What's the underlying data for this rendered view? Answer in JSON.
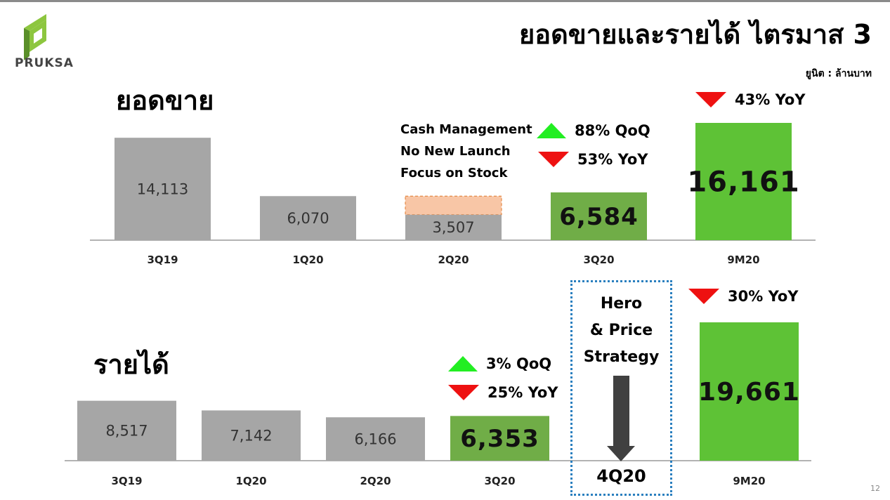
{
  "header": {
    "title": "ยอดขายและรายได้ ไตรมาส 3",
    "unit": "ยูนิต : ล้านบาท",
    "logo_text": "PRUKSA",
    "page_number": "12"
  },
  "colors": {
    "gray": "#a6a6a6",
    "green_dark": "#70ad47",
    "green_bright": "#5ec236",
    "peach": "#f8c6a6",
    "up": "#22ee22",
    "down": "#ee1111"
  },
  "sales": {
    "section_title": "ยอดขาย",
    "notes": [
      "Cash Management",
      "No New Launch",
      "Focus on Stock"
    ],
    "qoq_up": "88% QoQ",
    "yoy_down": "53% YoY",
    "ytd_yoy_down": "43% YoY"
  },
  "revenue": {
    "section_title": "รายได้",
    "qoq_up": "3% QoQ",
    "yoy_down": "25% YoY",
    "ytd_yoy_down": "30% YoY",
    "strategy_lines": [
      "Hero",
      "& Price",
      "Strategy"
    ],
    "next_quarter": "4Q20"
  },
  "chart_data": [
    {
      "type": "bar",
      "categories": [
        "3Q19",
        "1Q20",
        "2Q20",
        "3Q20",
        "9M20"
      ],
      "values": [
        14113,
        6070,
        3507,
        6584,
        16161
      ],
      "data_labels": [
        "14,113",
        "6,070",
        "3,507",
        "6,584",
        "16,161"
      ],
      "highlight_colors": [
        "gray",
        "gray",
        "gray",
        "green_dark",
        "green_bright"
      ],
      "annotations": [
        {
          "category": "2Q20",
          "shaded_target_value": 6070
        }
      ],
      "title": "ยอดขาย"
    },
    {
      "type": "bar",
      "categories": [
        "3Q19",
        "1Q20",
        "2Q20",
        "3Q20",
        "9M20"
      ],
      "values": [
        8517,
        7142,
        6166,
        6353,
        19661
      ],
      "data_labels": [
        "8,517",
        "7,142",
        "6,166",
        "6,353",
        "19,661"
      ],
      "highlight_colors": [
        "gray",
        "gray",
        "gray",
        "green_dark",
        "green_bright"
      ],
      "title": "รายได้"
    }
  ]
}
